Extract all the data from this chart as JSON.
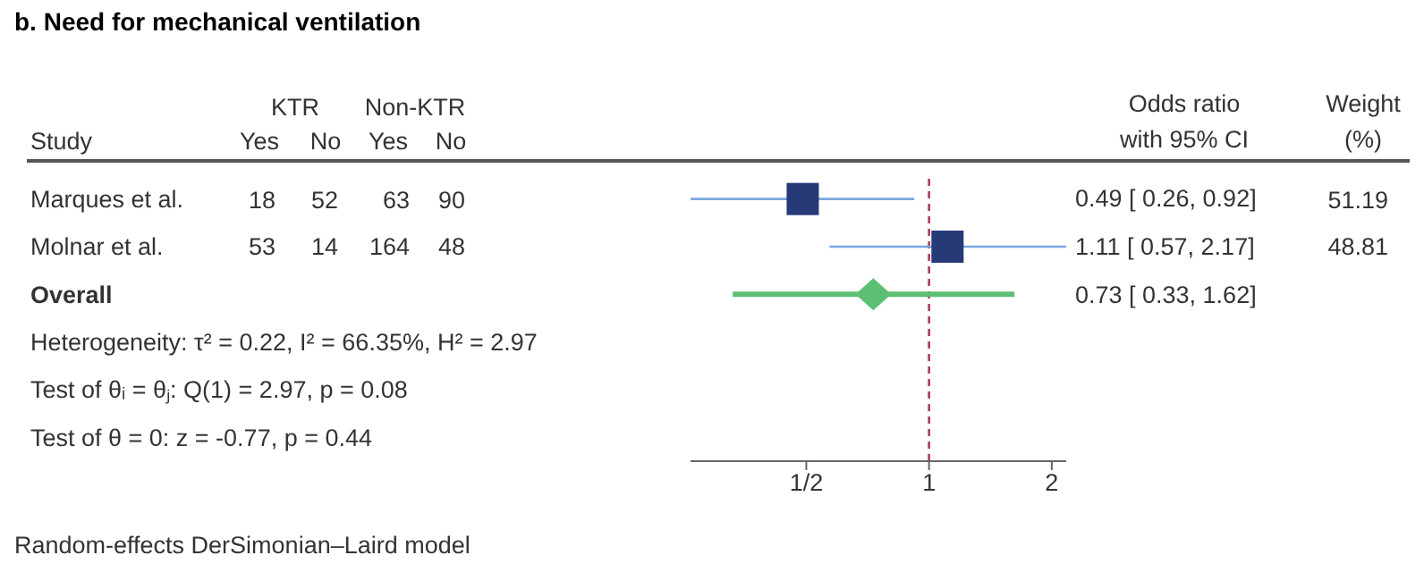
{
  "chart_data": {
    "type": "scatter",
    "title": "b. Need for mechanical ventilation",
    "orientation": "horizontal",
    "categories": [
      "Marques et al.",
      "Molnar et al.",
      "Overall",
      "Heterogeneity: τ² = 0.22, I² = 66.35%, H² = 2.97",
      "Test of θᵢ = θⱼ: Q(1) = 2.97, p = 0.08",
      "Test of θ = 0: z = -0.77, p = 0.44"
    ],
    "series": [
      {
        "type": "scatter",
        "marker": "square",
        "color": "#263a78",
        "values": [
          0.49,
          1.11,
          null,
          null,
          null,
          null
        ],
        "errors": [
          [
            0.26,
            0.92
          ],
          [
            0.57,
            2.17
          ],
          null,
          null,
          null,
          null
        ]
      },
      {
        "type": "scatter",
        "marker": "diamond",
        "color": "#5cbf73",
        "values": [
          null,
          null,
          0.73,
          null,
          null,
          null
        ],
        "errors": [
          null,
          null,
          [
            0.33,
            1.62
          ],
          null,
          null,
          null
        ]
      }
    ],
    "value_labels": [
      "0.49 [ 0.26, 0.92]",
      "1.11 [ 0.57, 2.17]",
      "0.73 [ 0.33, 1.62]",
      null,
      null,
      null
    ],
    "log": "x",
    "xlim": [
      0.26,
      2.17
    ],
    "xticks": [
      {
        "value": 0.5,
        "label": "1/2"
      },
      1,
      2
    ],
    "ref_lines": [
      {
        "axis": "x",
        "value": 1,
        "color": "#b03a5b",
        "line_style": "dashed"
      }
    ],
    "annotations": [
      "KTR",
      "Non-KTR",
      "Study",
      "Yes",
      "No",
      "Yes",
      "No",
      "Odds ratio",
      "with 95% CI",
      "Weight",
      "(%)",
      "18",
      "52",
      "63",
      "90",
      "51.19",
      "53",
      "14",
      "164",
      "48",
      "48.81",
      "Random-effects DerSimonian–Laird model"
    ]
  }
}
